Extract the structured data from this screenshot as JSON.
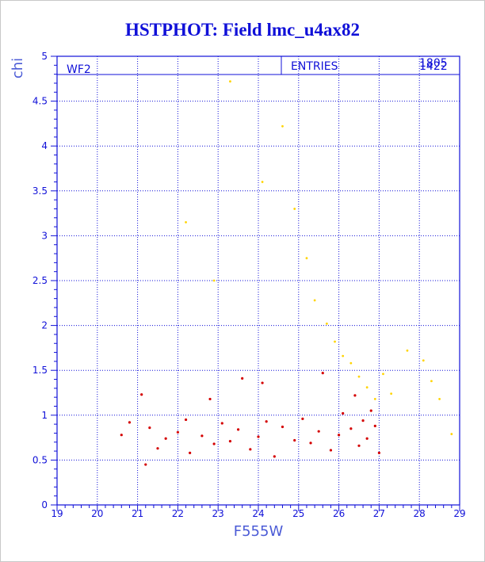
{
  "title": "HSTPHOT: Field lmc_u4ax82",
  "panel_label": "WF2",
  "stats_box": {
    "label": "ENTRIES",
    "values": [
      "1805",
      "1422"
    ]
  },
  "colors": {
    "frame": "#1010d8",
    "grid": "#1010d8",
    "title": "#1010d8",
    "axis_label": "#4b5bd6",
    "red_points": "#d40000",
    "yellow_points": "#ffd400"
  },
  "chart_data": {
    "type": "scatter",
    "title": "HSTPHOT: Field lmc_u4ax82",
    "xlabel": "F555W",
    "ylabel": "chi",
    "xlim": [
      19,
      29
    ],
    "ylim": [
      0,
      5
    ],
    "grid": true,
    "x_ticks": [
      "19",
      "20",
      "21",
      "22",
      "23",
      "24",
      "25",
      "26",
      "27",
      "28",
      "29"
    ],
    "y_ticks": [
      "0",
      "0.5",
      "1",
      "1.5",
      "2",
      "2.5",
      "3",
      "3.5",
      "4",
      "4.5",
      "5"
    ],
    "series": [
      {
        "color": "#d40000",
        "points": [
          [
            20.6,
            0.78
          ],
          [
            20.8,
            0.92
          ],
          [
            21.1,
            1.23
          ],
          [
            21.3,
            0.86
          ],
          [
            21.5,
            0.63
          ],
          [
            21.7,
            0.74
          ],
          [
            22.0,
            0.81
          ],
          [
            22.2,
            0.95
          ],
          [
            22.3,
            0.58
          ],
          [
            22.6,
            0.77
          ],
          [
            22.9,
            0.68
          ],
          [
            23.1,
            0.91
          ],
          [
            23.3,
            0.71
          ],
          [
            23.5,
            0.84
          ],
          [
            23.8,
            0.62
          ],
          [
            24.0,
            0.76
          ],
          [
            24.2,
            0.93
          ],
          [
            24.4,
            0.54
          ],
          [
            24.6,
            0.87
          ],
          [
            24.9,
            0.72
          ],
          [
            25.1,
            0.96
          ],
          [
            25.3,
            0.69
          ],
          [
            25.5,
            0.82
          ],
          [
            25.8,
            0.61
          ],
          [
            26.0,
            0.78
          ],
          [
            26.1,
            1.02
          ],
          [
            26.3,
            0.85
          ],
          [
            26.5,
            0.66
          ],
          [
            26.6,
            0.94
          ],
          [
            26.7,
            0.74
          ],
          [
            26.8,
            1.05
          ],
          [
            26.9,
            0.88
          ],
          [
            27.0,
            0.58
          ],
          [
            21.2,
            0.45
          ],
          [
            22.8,
            1.18
          ],
          [
            23.6,
            1.41
          ],
          [
            24.1,
            1.36
          ],
          [
            25.6,
            1.47
          ],
          [
            26.4,
            1.22
          ]
        ]
      },
      {
        "color": "#ffd400",
        "points": [
          [
            22.2,
            3.15
          ],
          [
            22.9,
            2.5
          ],
          [
            23.3,
            4.72
          ],
          [
            24.1,
            3.6
          ],
          [
            24.6,
            4.22
          ],
          [
            24.9,
            3.3
          ],
          [
            25.2,
            2.75
          ],
          [
            25.4,
            2.28
          ],
          [
            25.7,
            2.02
          ],
          [
            25.9,
            1.82
          ],
          [
            26.1,
            1.66
          ],
          [
            26.3,
            1.58
          ],
          [
            26.5,
            1.43
          ],
          [
            26.7,
            1.31
          ],
          [
            26.9,
            1.18
          ],
          [
            27.1,
            1.46
          ],
          [
            27.3,
            1.24
          ],
          [
            27.7,
            1.72
          ],
          [
            28.1,
            1.61
          ],
          [
            28.3,
            1.38
          ],
          [
            28.5,
            1.18
          ],
          [
            28.8,
            0.79
          ]
        ]
      }
    ]
  }
}
